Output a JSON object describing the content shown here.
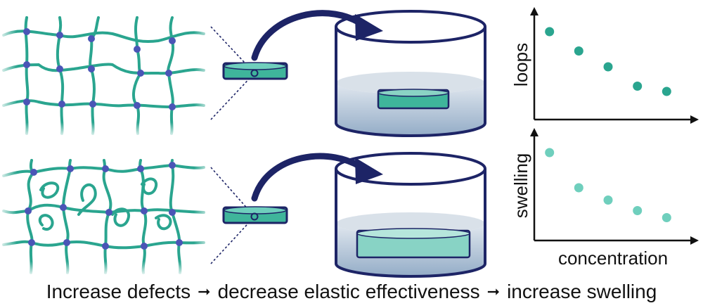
{
  "colors": {
    "strand": "#2aa58f",
    "strand_dark": "#1f8a78",
    "crosslink": "#4a55b6",
    "outline": "#1d2466",
    "liquid": "#a9bcd1",
    "gel_disc": "#3fb59b",
    "gel_swollen": "#88d3c5",
    "point_loops": "#2aa58f",
    "point_swelling": "#6fcfbd"
  },
  "icons": {
    "transfer_arrow": "curved-arrow-icon",
    "caption_arrow": "right-arrow-icon"
  },
  "charts": {
    "loops_chart": {
      "ylabel": "loops",
      "xlabel": "",
      "chart_data": {
        "type": "scatter",
        "x": [
          1,
          2,
          3,
          4,
          5
        ],
        "y": [
          5,
          3.9,
          3.0,
          1.9,
          1.6
        ],
        "xlim": [
          0,
          6
        ],
        "ylim": [
          0,
          6
        ],
        "grid": false
      }
    },
    "swelling_chart": {
      "ylabel": "swelling",
      "xlabel": "concentration",
      "chart_data": {
        "type": "scatter",
        "x": [
          1,
          2,
          3,
          4,
          5
        ],
        "y": [
          5,
          3.0,
          2.3,
          1.7,
          1.3
        ],
        "xlim": [
          0,
          6
        ],
        "ylim": [
          0,
          6
        ],
        "grid": false
      }
    }
  },
  "caption": {
    "part1": "Increase defects",
    "part2": "decrease elastic effectiveness",
    "part3": "increase swelling",
    "separator": "➞"
  }
}
